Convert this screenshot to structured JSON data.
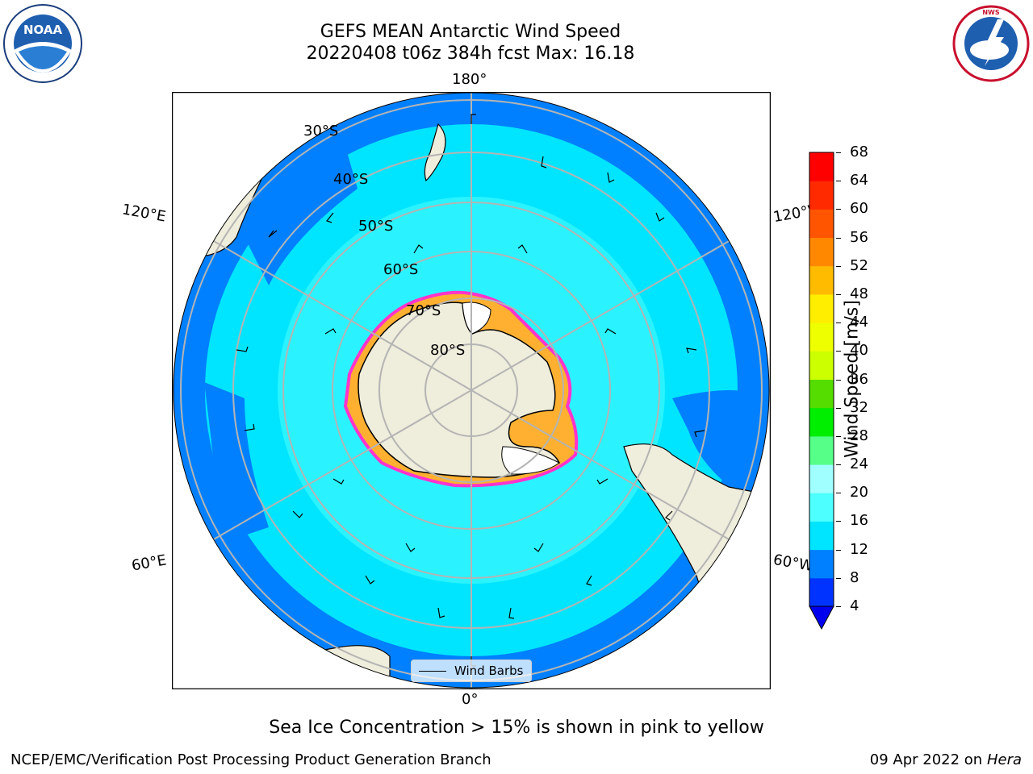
{
  "title": {
    "line1": "GEFS MEAN Antarctic Wind Speed",
    "line2": "20220408 t06z 384h fcst   Max: 16.18"
  },
  "map_labels": {
    "lon_top": "180°",
    "lon_bottom": "0°",
    "lon_left_upper": "120°E",
    "lon_right_upper": "120°W",
    "lon_left_lower": "60°E",
    "lon_right_lower": "60°W",
    "lat_30": "30°S",
    "lat_40": "40°S",
    "lat_50": "50°S",
    "lat_60": "60°S",
    "lat_70": "70°S",
    "lat_80": "80°S"
  },
  "legend": {
    "label": "Wind Barbs"
  },
  "colorbar": {
    "label": "Wind Speed [m/s]",
    "ticks": [
      "68",
      "64",
      "60",
      "56",
      "52",
      "48",
      "44",
      "40",
      "36",
      "32",
      "28",
      "24",
      "20",
      "16",
      "12",
      "8",
      "4"
    ],
    "colors": [
      "#0033ff",
      "#0080ff",
      "#00e5ff",
      "#4dffff",
      "#a0ffff",
      "#55ff88",
      "#00ee00",
      "#55dd00",
      "#ccff00",
      "#eeff00",
      "#ffee00",
      "#ffbb00",
      "#ff8800",
      "#ff5500",
      "#ff2a00",
      "#ff0000"
    ],
    "under_color": "#0000ee"
  },
  "map_colors": {
    "ocean_low": "#0080ff",
    "ocean_mid": "#00e5ff",
    "ocean_high": "#4dffff",
    "land": "#efeddb",
    "sea_ice_edge": "#ff33cc",
    "sea_ice_inner": "#ffb030"
  },
  "caption": "Sea Ice Concentration > 15% is shown in pink to yellow",
  "footer": {
    "left": "NCEP/EMC/Verification Post Processing Product Generation Branch",
    "right_date": "09 Apr 2022 on ",
    "right_host": "Hera"
  },
  "logos": {
    "noaa": "NOAA",
    "nws": "NATIONAL WEATHER SERVICE"
  }
}
